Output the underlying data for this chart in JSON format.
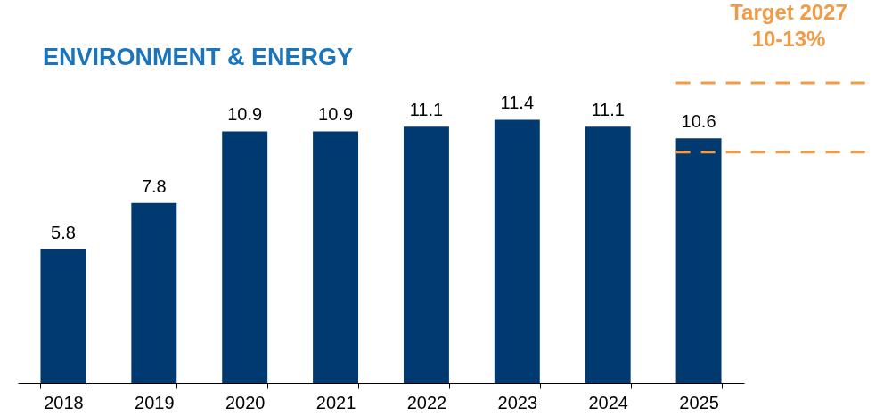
{
  "chart_data": {
    "type": "bar",
    "title": "ENVIRONMENT & ENERGY",
    "categories": [
      "2018",
      "2019",
      "2020",
      "2021",
      "2022",
      "2023",
      "2024",
      "2025"
    ],
    "values": [
      5.8,
      7.8,
      10.9,
      10.9,
      11.1,
      11.4,
      11.1,
      10.6
    ],
    "color": "#003a70",
    "data_labels": true,
    "grid": false,
    "ref_lines": [
      {
        "axis": "y",
        "value": 10,
        "color": "#f39a45",
        "line_style": "dashed"
      },
      {
        "axis": "y",
        "value": 13,
        "color": "#f39a45",
        "line_style": "dashed"
      }
    ],
    "annotations": [
      "Target 2027\n10-13%"
    ]
  }
}
